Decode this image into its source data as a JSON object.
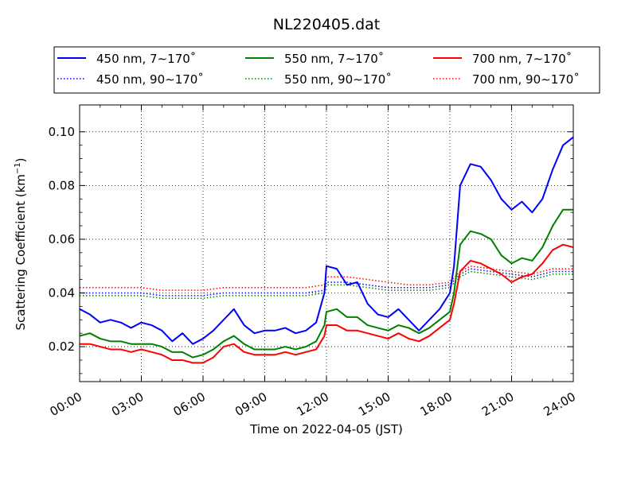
{
  "chart_data": {
    "type": "line",
    "title": "NL220405.dat",
    "xlabel": "Time on 2022-04-05 (JST)",
    "ylabel": "Scattering Coefficient (km",
    "ylabel_sup": "−1",
    "ylabel_end": ")",
    "xlim": [
      0,
      24
    ],
    "ylim": [
      0.007,
      0.11
    ],
    "x_ticks": [
      0,
      3,
      6,
      9,
      12,
      15,
      18,
      21,
      24
    ],
    "x_tick_labels": [
      "00:00",
      "03:00",
      "06:00",
      "09:00",
      "12:00",
      "15:00",
      "18:00",
      "21:00",
      "24:00"
    ],
    "y_ticks": [
      0.02,
      0.04,
      0.06,
      0.08,
      0.1
    ],
    "y_tick_labels": [
      "0.02",
      "0.04",
      "0.06",
      "0.08",
      "0.10"
    ],
    "grid": true,
    "legend_position": "top",
    "series": [
      {
        "name": "450 nm, 7∼170˚",
        "color": "#0000ff",
        "style": "solid",
        "x": [
          0,
          0.5,
          1,
          1.5,
          2,
          2.5,
          3,
          3.5,
          4,
          4.5,
          5,
          5.5,
          6,
          6.5,
          7,
          7.5,
          8,
          8.5,
          9,
          9.5,
          10,
          10.5,
          11,
          11.5,
          11.9,
          12,
          12.5,
          13,
          13.5,
          14,
          14.5,
          15,
          15.5,
          16,
          16.5,
          17,
          17.5,
          18,
          18.2,
          18.5,
          19,
          19.5,
          20,
          20.5,
          21,
          21.5,
          22,
          22.5,
          23,
          23.5,
          24
        ],
        "y": [
          0.034,
          0.032,
          0.029,
          0.03,
          0.029,
          0.027,
          0.029,
          0.028,
          0.026,
          0.022,
          0.025,
          0.021,
          0.023,
          0.026,
          0.03,
          0.034,
          0.028,
          0.025,
          0.026,
          0.026,
          0.027,
          0.025,
          0.026,
          0.029,
          0.04,
          0.05,
          0.049,
          0.043,
          0.044,
          0.036,
          0.032,
          0.031,
          0.034,
          0.03,
          0.026,
          0.03,
          0.034,
          0.04,
          0.05,
          0.08,
          0.088,
          0.087,
          0.082,
          0.075,
          0.071,
          0.074,
          0.07,
          0.075,
          0.086,
          0.095,
          0.098
        ]
      },
      {
        "name": "550 nm, 7∼170˚",
        "color": "#008000",
        "style": "solid",
        "x": [
          0,
          0.5,
          1,
          1.5,
          2,
          2.5,
          3,
          3.5,
          4,
          4.5,
          5,
          5.5,
          6,
          6.5,
          7,
          7.5,
          8,
          8.5,
          9,
          9.5,
          10,
          10.5,
          11,
          11.5,
          11.9,
          12,
          12.5,
          13,
          13.5,
          14,
          14.5,
          15,
          15.5,
          16,
          16.5,
          17,
          17.5,
          18,
          18.2,
          18.5,
          19,
          19.5,
          20,
          20.5,
          21,
          21.5,
          22,
          22.5,
          23,
          23.5,
          24
        ],
        "y": [
          0.024,
          0.025,
          0.023,
          0.022,
          0.022,
          0.021,
          0.021,
          0.021,
          0.02,
          0.018,
          0.018,
          0.016,
          0.017,
          0.019,
          0.022,
          0.024,
          0.021,
          0.019,
          0.019,
          0.019,
          0.02,
          0.019,
          0.02,
          0.022,
          0.028,
          0.033,
          0.034,
          0.031,
          0.031,
          0.028,
          0.027,
          0.026,
          0.028,
          0.027,
          0.025,
          0.027,
          0.03,
          0.033,
          0.04,
          0.058,
          0.063,
          0.062,
          0.06,
          0.054,
          0.051,
          0.053,
          0.052,
          0.057,
          0.065,
          0.071,
          0.071
        ]
      },
      {
        "name": "700 nm, 7∼170˚",
        "color": "#ff0000",
        "style": "solid",
        "x": [
          0,
          0.5,
          1,
          1.5,
          2,
          2.5,
          3,
          3.5,
          4,
          4.5,
          5,
          5.5,
          6,
          6.5,
          7,
          7.5,
          8,
          8.5,
          9,
          9.5,
          10,
          10.5,
          11,
          11.5,
          11.9,
          12,
          12.5,
          13,
          13.5,
          14,
          14.5,
          15,
          15.5,
          16,
          16.5,
          17,
          17.5,
          18,
          18.2,
          18.5,
          19,
          19.5,
          20,
          20.5,
          21,
          21.5,
          22,
          22.5,
          23,
          23.5,
          24
        ],
        "y": [
          0.021,
          0.021,
          0.02,
          0.019,
          0.019,
          0.018,
          0.019,
          0.018,
          0.017,
          0.015,
          0.015,
          0.014,
          0.014,
          0.016,
          0.02,
          0.021,
          0.018,
          0.017,
          0.017,
          0.017,
          0.018,
          0.017,
          0.018,
          0.019,
          0.024,
          0.028,
          0.028,
          0.026,
          0.026,
          0.025,
          0.024,
          0.023,
          0.025,
          0.023,
          0.022,
          0.024,
          0.027,
          0.03,
          0.036,
          0.048,
          0.052,
          0.051,
          0.049,
          0.047,
          0.044,
          0.046,
          0.047,
          0.051,
          0.056,
          0.058,
          0.057
        ]
      },
      {
        "name": "450 nm, 90∼170˚",
        "color": "#0000ff",
        "style": "dotted",
        "x": [
          0,
          1,
          2,
          3,
          4,
          5,
          6,
          7,
          8,
          9,
          10,
          11,
          11.9,
          12,
          13,
          14,
          15,
          16,
          17,
          18,
          18.5,
          19,
          20,
          21,
          22,
          23,
          24
        ],
        "y": [
          0.04,
          0.04,
          0.04,
          0.04,
          0.039,
          0.039,
          0.039,
          0.04,
          0.04,
          0.04,
          0.04,
          0.04,
          0.041,
          0.044,
          0.044,
          0.043,
          0.042,
          0.042,
          0.042,
          0.043,
          0.047,
          0.049,
          0.048,
          0.047,
          0.046,
          0.048,
          0.048
        ]
      },
      {
        "name": "550 nm, 90∼170˚",
        "color": "#008000",
        "style": "dotted",
        "x": [
          0,
          1,
          2,
          3,
          4,
          5,
          6,
          7,
          8,
          9,
          10,
          11,
          11.9,
          12,
          13,
          14,
          15,
          16,
          17,
          18,
          18.5,
          19,
          20,
          21,
          22,
          23,
          24
        ],
        "y": [
          0.039,
          0.039,
          0.039,
          0.039,
          0.038,
          0.038,
          0.038,
          0.039,
          0.039,
          0.039,
          0.039,
          0.039,
          0.04,
          0.043,
          0.043,
          0.042,
          0.041,
          0.041,
          0.041,
          0.042,
          0.046,
          0.048,
          0.047,
          0.046,
          0.045,
          0.047,
          0.047
        ]
      },
      {
        "name": "700 nm, 90∼170˚",
        "color": "#ff0000",
        "style": "dotted",
        "x": [
          0,
          1,
          2,
          3,
          4,
          5,
          6,
          7,
          8,
          9,
          10,
          11,
          11.9,
          12,
          13,
          14,
          15,
          16,
          17,
          18,
          18.5,
          19,
          20,
          21,
          22,
          23,
          24
        ],
        "y": [
          0.042,
          0.042,
          0.042,
          0.042,
          0.041,
          0.041,
          0.041,
          0.042,
          0.042,
          0.042,
          0.042,
          0.042,
          0.043,
          0.046,
          0.046,
          0.045,
          0.044,
          0.043,
          0.043,
          0.044,
          0.048,
          0.05,
          0.049,
          0.048,
          0.047,
          0.049,
          0.049
        ]
      }
    ]
  }
}
